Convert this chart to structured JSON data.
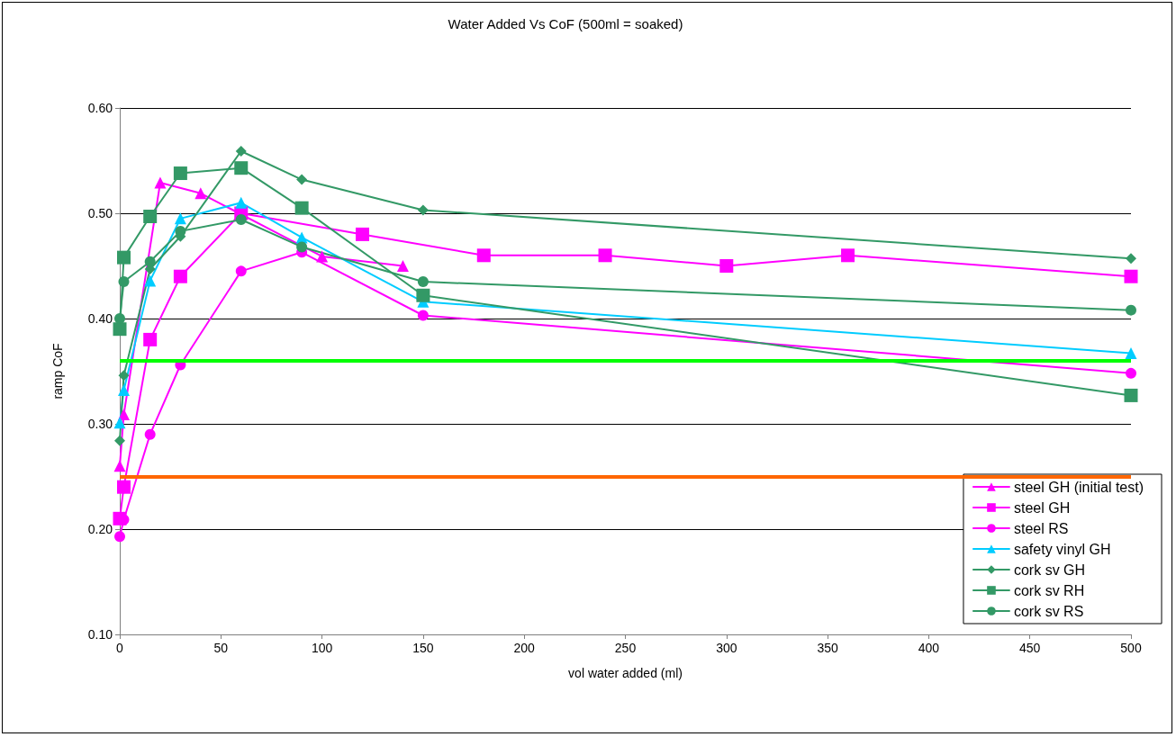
{
  "chart_data": {
    "type": "line",
    "title": "Water Added Vs CoF (500ml = soaked)",
    "xlabel": "vol water added (ml)",
    "ylabel": "ramp CoF",
    "xlim": [
      0,
      500
    ],
    "xticks": [
      0,
      50,
      100,
      150,
      200,
      250,
      300,
      350,
      400,
      450,
      500
    ],
    "ylim": [
      0.1,
      0.6
    ],
    "yticks": [
      {
        "value": 0.1,
        "label": "0.10"
      },
      {
        "value": 0.2,
        "label": "0.20"
      },
      {
        "value": 0.3,
        "label": "0.30"
      },
      {
        "value": 0.4,
        "label": "0.40"
      },
      {
        "value": 0.5,
        "label": "0.50"
      },
      {
        "value": 0.6,
        "label": "0.60"
      }
    ],
    "grid": "y",
    "legend": "bottom right",
    "series": [
      {
        "name": "steel GH (initial test)",
        "color": "#ff00ff",
        "marker": "triangle",
        "x": [
          0,
          2,
          20,
          40,
          100,
          140
        ],
        "values": [
          0.26,
          0.309,
          0.529,
          0.519,
          0.459,
          0.45
        ]
      },
      {
        "name": "steel GH",
        "color": "#ff00ff",
        "marker": "square",
        "x": [
          0,
          2,
          15,
          30,
          60,
          120,
          180,
          240,
          300,
          360,
          500
        ],
        "values": [
          0.21,
          0.24,
          0.38,
          0.44,
          0.5,
          0.48,
          0.46,
          0.46,
          0.45,
          0.46,
          0.44
        ]
      },
      {
        "name": "steel RS",
        "color": "#ff00ff",
        "marker": "circle",
        "x": [
          0,
          2,
          15,
          30,
          60,
          90,
          150,
          500
        ],
        "values": [
          0.193,
          0.209,
          0.29,
          0.356,
          0.445,
          0.463,
          0.403,
          0.348
        ]
      },
      {
        "name": "safety vinyl GH",
        "color": "#00ccff",
        "marker": "triangle",
        "x": [
          0,
          2,
          15,
          30,
          60,
          90,
          150,
          500
        ],
        "values": [
          0.301,
          0.332,
          0.436,
          0.495,
          0.51,
          0.477,
          0.416,
          0.367
        ]
      },
      {
        "name": "cork sv GH",
        "color": "#339966",
        "marker": "diamond",
        "x": [
          0,
          2,
          15,
          30,
          60,
          90,
          150,
          500
        ],
        "values": [
          0.284,
          0.346,
          0.447,
          0.478,
          0.559,
          0.532,
          0.503,
          0.457
        ]
      },
      {
        "name": "cork sv RH",
        "color": "#339966",
        "marker": "square",
        "x": [
          0,
          2,
          15,
          30,
          60,
          90,
          150,
          500
        ],
        "values": [
          0.39,
          0.458,
          0.497,
          0.538,
          0.543,
          0.505,
          0.422,
          0.327
        ]
      },
      {
        "name": "cork sv RS",
        "color": "#339966",
        "marker": "circle",
        "x": [
          0,
          2,
          15,
          30,
          60,
          90,
          150,
          500
        ],
        "values": [
          0.4,
          0.435,
          0.454,
          0.483,
          0.494,
          0.468,
          0.435,
          0.408
        ]
      }
    ],
    "ref_lines": [
      {
        "axis": "y",
        "value": 0.36,
        "color": "#00ff00"
      },
      {
        "axis": "y",
        "value": 0.25,
        "color": "#ff6600"
      }
    ]
  }
}
